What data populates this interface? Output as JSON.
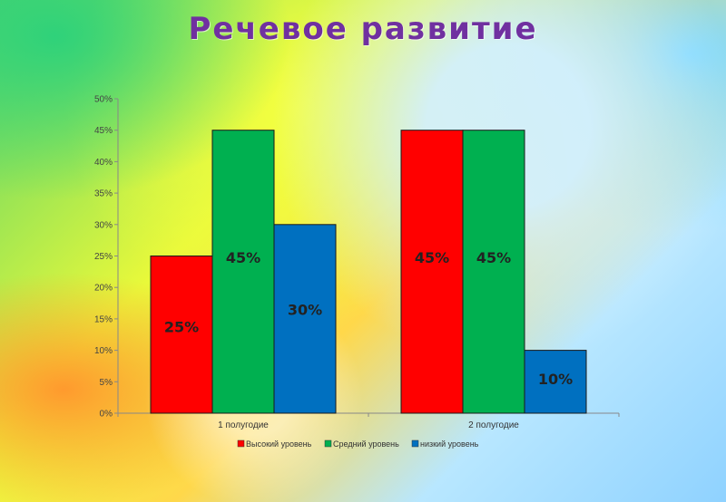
{
  "title": "Речевое развитие",
  "chart_data": {
    "type": "bar",
    "title": "Речевое развитие",
    "categories": [
      "1 полугодие",
      "2 полугодие"
    ],
    "series": [
      {
        "name": "Высокий уровень",
        "color": "#ff0000",
        "values": [
          25,
          45
        ],
        "labels": [
          "25%",
          "45%"
        ]
      },
      {
        "name": "Средний уровень",
        "color": "#00b050",
        "values": [
          45,
          45
        ],
        "labels": [
          "45%",
          "45%"
        ]
      },
      {
        "name": "низкий уровень",
        "color": "#0070c0",
        "values": [
          30,
          10
        ],
        "labels": [
          "30%",
          "10%"
        ]
      }
    ],
    "ylim": [
      0,
      50
    ],
    "yticks": [
      "0%",
      "5%",
      "10%",
      "15%",
      "20%",
      "25%",
      "30%",
      "35%",
      "40%",
      "45%",
      "50%"
    ],
    "xlabel": "",
    "ylabel": "",
    "grid": false,
    "legend": "bottom"
  }
}
